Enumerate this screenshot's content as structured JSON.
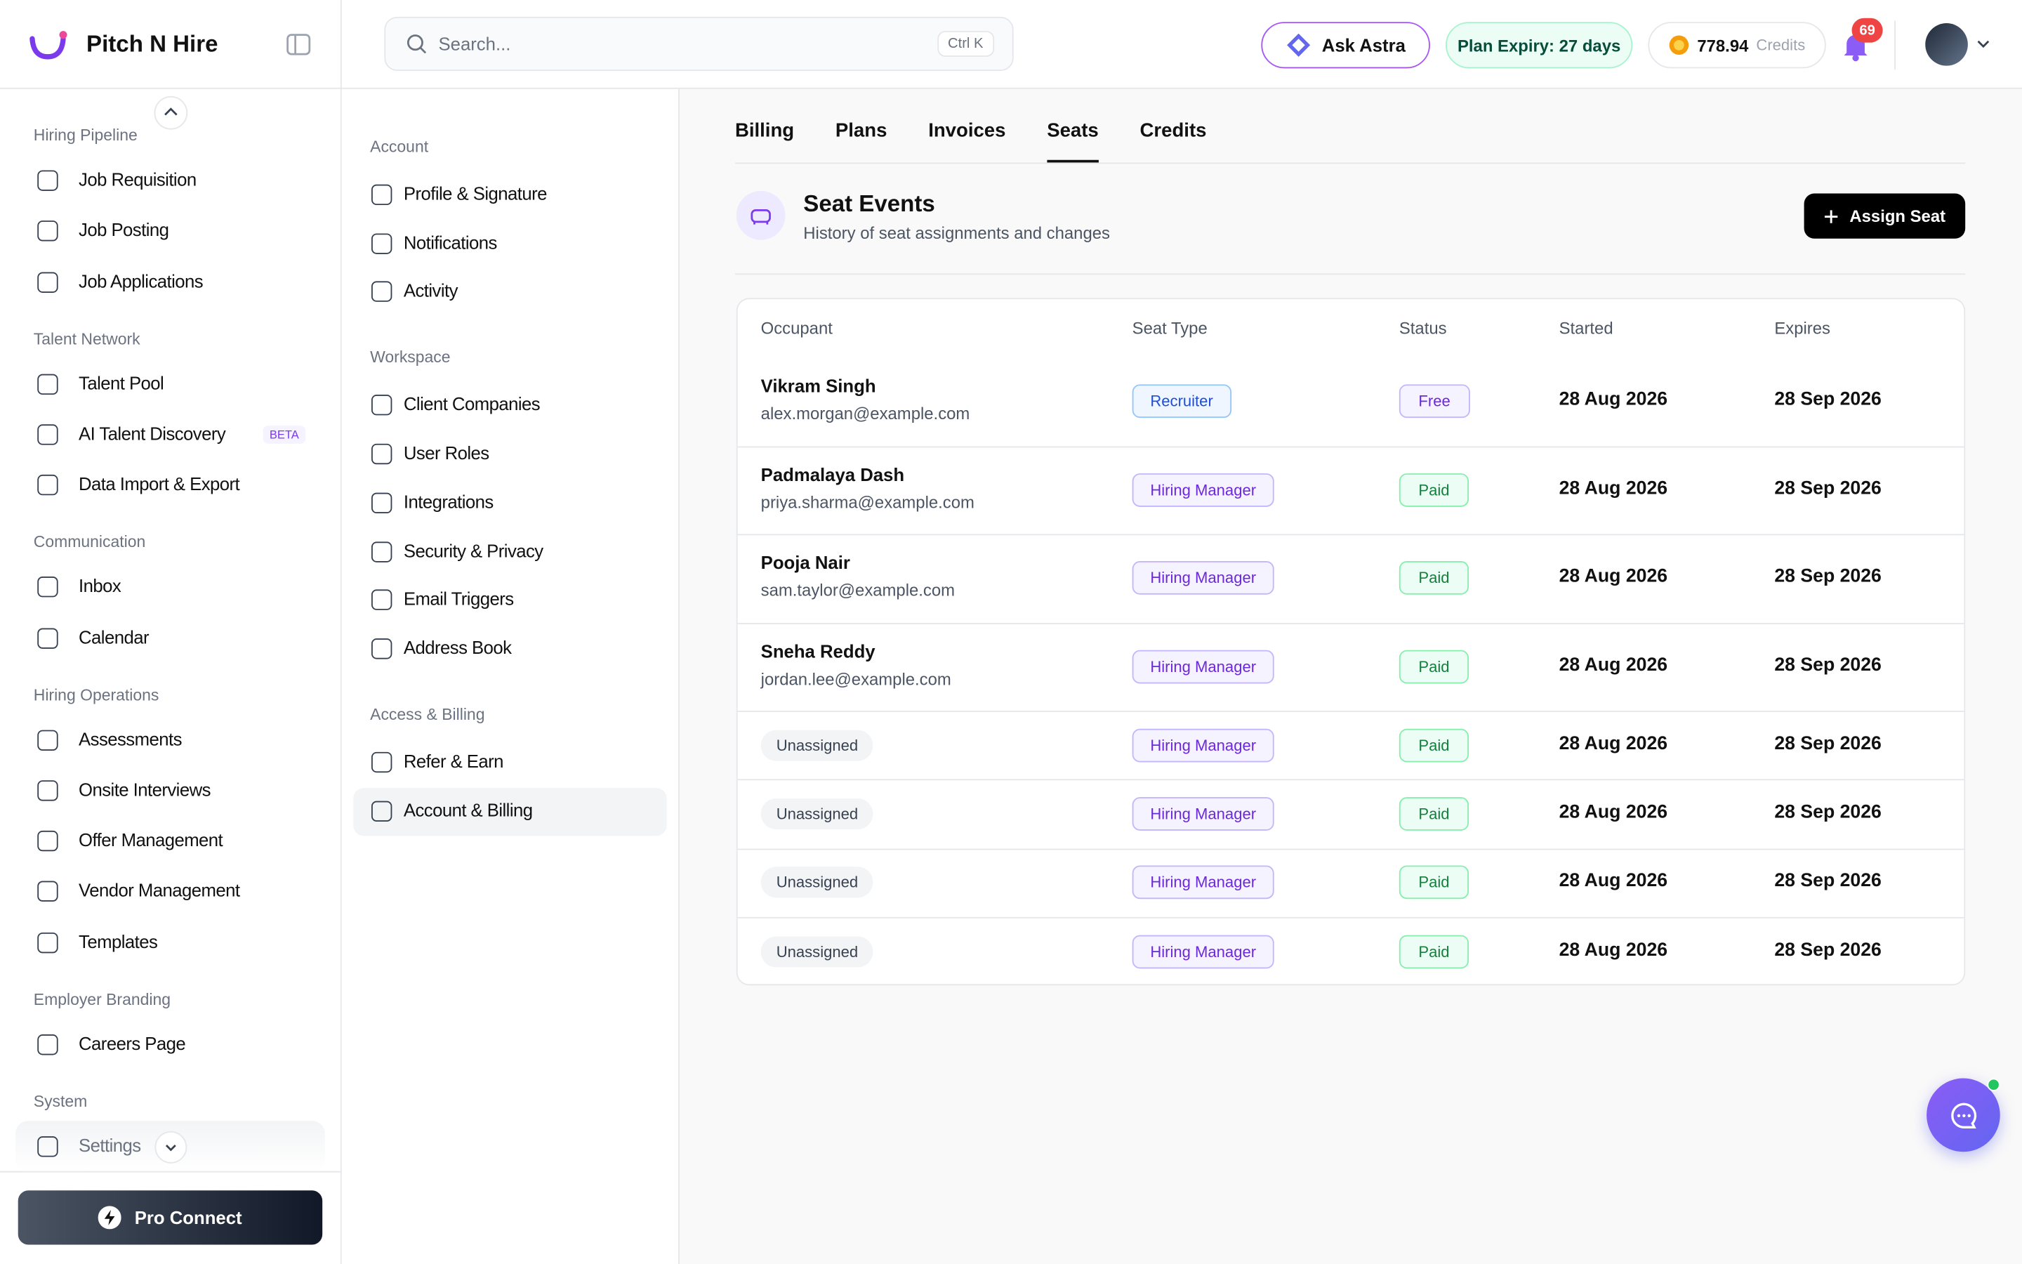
{
  "sidebar": {
    "brand": "Pitch N Hire",
    "sections": [
      {
        "title": "Hiring Pipeline",
        "items": [
          {
            "label": "Job Requisition"
          },
          {
            "label": "Job Posting"
          },
          {
            "label": "Job Applications"
          }
        ]
      },
      {
        "title": "Talent Network",
        "items": [
          {
            "label": "Talent Pool"
          },
          {
            "label": "AI Talent Discovery",
            "badge": "BETA"
          },
          {
            "label": "Data Import & Export"
          }
        ]
      },
      {
        "title": "Communication",
        "items": [
          {
            "label": "Inbox"
          },
          {
            "label": "Calendar"
          }
        ]
      },
      {
        "title": "Hiring Operations",
        "items": [
          {
            "label": "Assessments"
          },
          {
            "label": "Onsite Interviews"
          },
          {
            "label": "Offer Management"
          },
          {
            "label": "Vendor Management"
          },
          {
            "label": "Templates"
          }
        ]
      },
      {
        "title": "Employer Branding",
        "items": [
          {
            "label": "Careers Page"
          }
        ]
      },
      {
        "title": "System",
        "items": [
          {
            "label": "Settings"
          }
        ]
      }
    ],
    "pro_connect": "Pro Connect"
  },
  "header": {
    "search_placeholder": "Search...",
    "shortcut": "Ctrl K",
    "ask": "Ask Astra",
    "plan_expiry": "Plan Expiry: 27 days",
    "credits_amount": "778.94",
    "credits_label": "Credits",
    "notifications": "69"
  },
  "settings_nav": {
    "groups": [
      {
        "title": "Account",
        "items": [
          "Profile & Signature",
          "Notifications",
          "Activity"
        ]
      },
      {
        "title": "Workspace",
        "items": [
          "Client Companies",
          "User Roles",
          "Integrations",
          "Security & Privacy",
          "Email Triggers",
          "Address Book"
        ]
      },
      {
        "title": "Access & Billing",
        "items": [
          "Refer & Earn",
          "Account & Billing"
        ]
      }
    ],
    "active": "Account & Billing"
  },
  "tabs": {
    "items": [
      "Billing",
      "Plans",
      "Invoices",
      "Seats",
      "Credits"
    ],
    "active": "Seats"
  },
  "section": {
    "title": "Seat Events",
    "subtitle": "History of seat assignments and changes",
    "action": "Assign Seat"
  },
  "table": {
    "columns": [
      "Occupant",
      "Seat Type",
      "Status",
      "Started",
      "Expires"
    ],
    "badge_tones": {
      "Recruiter": "blue",
      "Hiring Manager": "purple",
      "Free": "purple",
      "Paid": "green"
    },
    "rows": [
      {
        "name": "Vikram Singh",
        "email": "alex.morgan@example.com",
        "seat_type": "Recruiter",
        "status": "Free",
        "started": "28 Aug 2026",
        "expires": "28 Sep 2026"
      },
      {
        "name": "Padmalaya Dash",
        "email": "priya.sharma@example.com",
        "seat_type": "Hiring Manager",
        "status": "Paid",
        "started": "28 Aug 2026",
        "expires": "28 Sep 2026"
      },
      {
        "name": "Pooja Nair",
        "email": "sam.taylor@example.com",
        "seat_type": "Hiring Manager",
        "status": "Paid",
        "started": "28 Aug 2026",
        "expires": "28 Sep 2026"
      },
      {
        "name": "Sneha Reddy",
        "email": "jordan.lee@example.com",
        "seat_type": "Hiring Manager",
        "status": "Paid",
        "started": "28 Aug 2026",
        "expires": "28 Sep 2026"
      },
      {
        "placeholder": "Unassigned",
        "seat_type": "Hiring Manager",
        "status": "Paid",
        "started": "28 Aug 2026",
        "expires": "28 Sep 2026"
      },
      {
        "placeholder": "Unassigned",
        "seat_type": "Hiring Manager",
        "status": "Paid",
        "started": "28 Aug 2026",
        "expires": "28 Sep 2026"
      },
      {
        "placeholder": "Unassigned",
        "seat_type": "Hiring Manager",
        "status": "Paid",
        "started": "28 Aug 2026",
        "expires": "28 Sep 2026"
      },
      {
        "placeholder": "Unassigned",
        "seat_type": "Hiring Manager",
        "status": "Paid",
        "started": "28 Aug 2026",
        "expires": "28 Sep 2026"
      }
    ]
  }
}
